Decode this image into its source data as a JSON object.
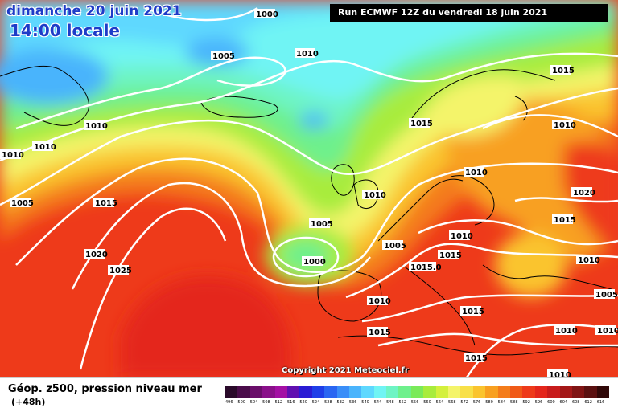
{
  "header": {
    "valid_date": "dimanche 20 juin 2021",
    "valid_time": "14:00 locale",
    "run_banner": "Run ECMWF 12Z du vendredi 18 juin 2021",
    "copyright": "Copyright 2021 Meteociel.fr"
  },
  "legend": {
    "title": "Géop. z500, pression niveau mer",
    "subtitle": "(+48h)",
    "scale": [
      {
        "value": "496",
        "color": "#2a0a2a"
      },
      {
        "value": "500",
        "color": "#4a0c4a"
      },
      {
        "value": "504",
        "color": "#6a0e6a"
      },
      {
        "value": "508",
        "color": "#8a108a"
      },
      {
        "value": "512",
        "color": "#a410a4"
      },
      {
        "value": "516",
        "color": "#6010b0"
      },
      {
        "value": "520",
        "color": "#2a1cd4"
      },
      {
        "value": "524",
        "color": "#1f3ee8"
      },
      {
        "value": "528",
        "color": "#2a66f2"
      },
      {
        "value": "532",
        "color": "#3a8ef8"
      },
      {
        "value": "536",
        "color": "#4ab4fc"
      },
      {
        "value": "540",
        "color": "#5ed8fe"
      },
      {
        "value": "544",
        "color": "#70f4f4"
      },
      {
        "value": "548",
        "color": "#6ef4c4"
      },
      {
        "value": "552",
        "color": "#6ef08c"
      },
      {
        "value": "556",
        "color": "#7aea5a"
      },
      {
        "value": "560",
        "color": "#a8ec3c"
      },
      {
        "value": "564",
        "color": "#d4f03c"
      },
      {
        "value": "568",
        "color": "#f4f46a"
      },
      {
        "value": "572",
        "color": "#f8e048"
      },
      {
        "value": "576",
        "color": "#fac42e"
      },
      {
        "value": "580",
        "color": "#f8a020"
      },
      {
        "value": "584",
        "color": "#f47c1a"
      },
      {
        "value": "588",
        "color": "#f05a18"
      },
      {
        "value": "592",
        "color": "#ee3a1a"
      },
      {
        "value": "596",
        "color": "#e4261c"
      },
      {
        "value": "600",
        "color": "#c81c1c"
      },
      {
        "value": "604",
        "color": "#a41818"
      },
      {
        "value": "608",
        "color": "#801414"
      },
      {
        "value": "612",
        "color": "#5a1010"
      },
      {
        "value": "616",
        "color": "#300808"
      }
    ]
  },
  "isobar_labels": [
    {
      "id": "1000-a",
      "text": "1000"
    },
    {
      "id": "1005-a",
      "text": "1005"
    },
    {
      "id": "1010-a",
      "text": "1010"
    },
    {
      "id": "1010-b",
      "text": "1010"
    },
    {
      "id": "1010-c",
      "text": "1010"
    },
    {
      "id": "1010-d",
      "text": "1010"
    },
    {
      "id": "1005-b",
      "text": "1005"
    },
    {
      "id": "1015-a",
      "text": "1015"
    },
    {
      "id": "1020-a",
      "text": "1020"
    },
    {
      "id": "1025-a",
      "text": "1025"
    },
    {
      "id": "1010-e",
      "text": "1010"
    },
    {
      "id": "1005-c",
      "text": "1005"
    },
    {
      "id": "1000-b",
      "text": "1000"
    },
    {
      "id": "1005-d",
      "text": "1005"
    },
    {
      "id": "1015-b",
      "text": "1015"
    },
    {
      "id": "1015-c",
      "text": "1015"
    },
    {
      "id": "1010-f",
      "text": "1010"
    },
    {
      "id": "1010-g",
      "text": "1010"
    },
    {
      "id": "1010-h",
      "text": "1010"
    },
    {
      "id": "1015-d",
      "text": "1015"
    },
    {
      "id": "1015-e",
      "text": "1015.0"
    },
    {
      "id": "1010-i",
      "text": "1010"
    },
    {
      "id": "1015-f",
      "text": "1015"
    },
    {
      "id": "1015-g",
      "text": "1015"
    },
    {
      "id": "1015-h",
      "text": "1015"
    },
    {
      "id": "1020-b",
      "text": "1020"
    },
    {
      "id": "1015-i",
      "text": "1015"
    },
    {
      "id": "1010-j",
      "text": "1010"
    },
    {
      "id": "1005-e",
      "text": "1005"
    },
    {
      "id": "1010-k",
      "text": "1010"
    },
    {
      "id": "1010-l",
      "text": "1010"
    },
    {
      "id": "1010-m",
      "text": "1010"
    }
  ]
}
